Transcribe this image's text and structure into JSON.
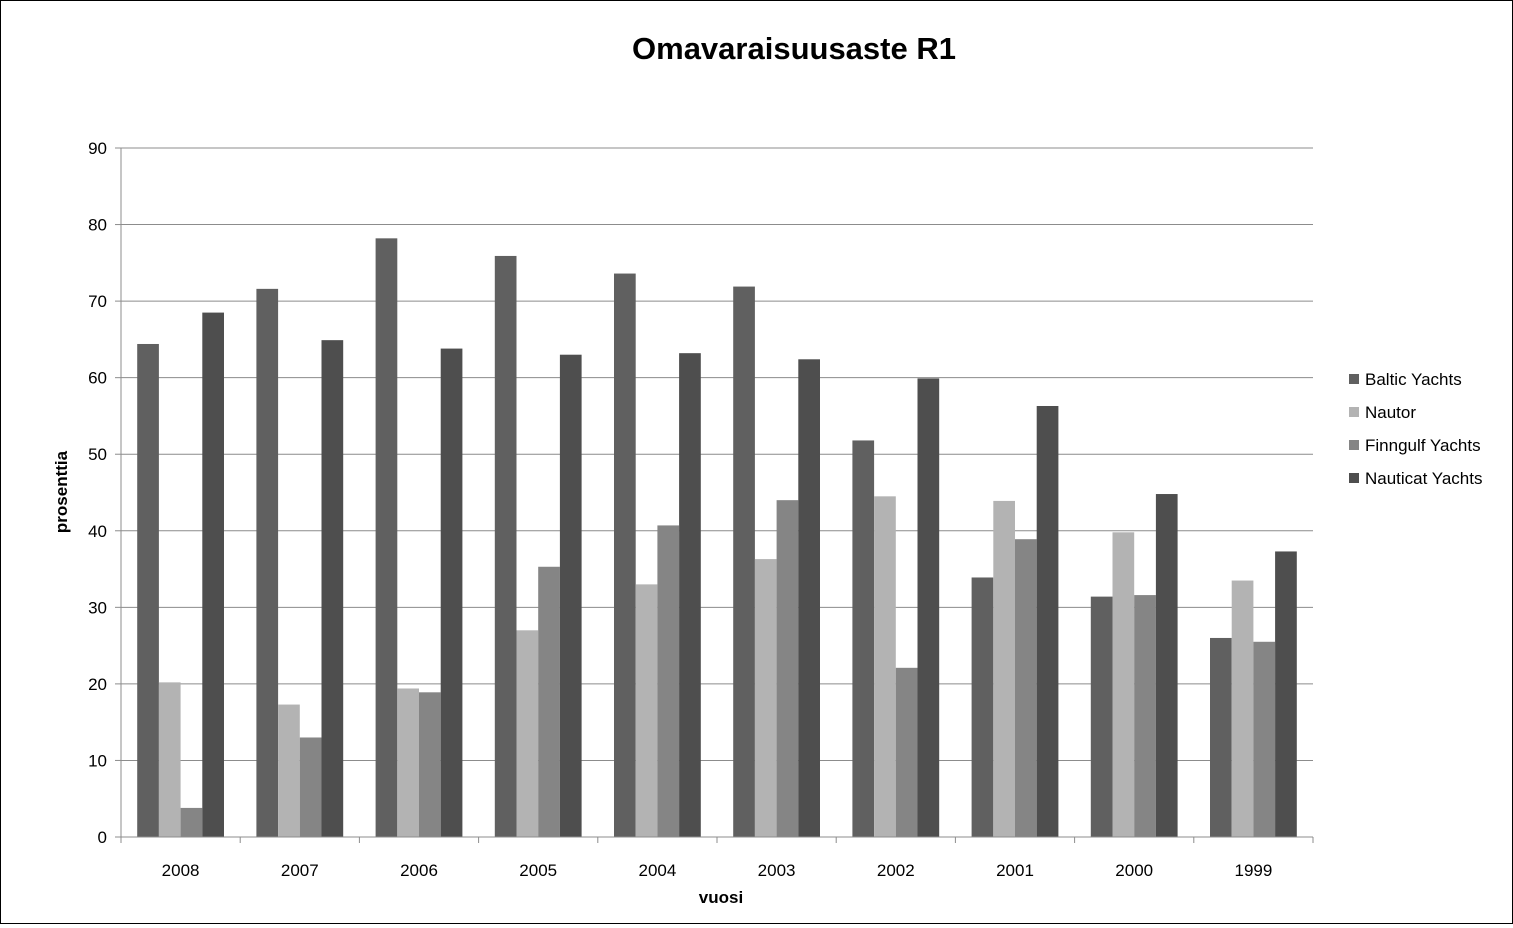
{
  "chart_data": {
    "type": "bar",
    "title": "Omavaraisuusaste R1",
    "xlabel": "vuosi",
    "ylabel": "prosenttia",
    "categories": [
      "2008",
      "2007",
      "2006",
      "2005",
      "2004",
      "2003",
      "2002",
      "2001",
      "2000",
      "1999"
    ],
    "ylim": [
      0,
      90
    ],
    "yticks": [
      0,
      10,
      20,
      30,
      40,
      50,
      60,
      70,
      80,
      90
    ],
    "grid": true,
    "legend_position": "right",
    "series": [
      {
        "name": "Baltic Yachts",
        "color": "#606060",
        "values": [
          64.4,
          71.6,
          78.2,
          75.9,
          73.6,
          71.9,
          51.8,
          33.9,
          31.4,
          26.0
        ]
      },
      {
        "name": "Nautor",
        "color": "#b3b3b3",
        "values": [
          20.2,
          17.3,
          19.4,
          27.0,
          33.0,
          36.3,
          44.5,
          43.9,
          39.8,
          33.5
        ]
      },
      {
        "name": "Finngulf Yachts",
        "color": "#858585",
        "values": [
          3.8,
          13.0,
          18.9,
          35.3,
          40.7,
          44.0,
          22.1,
          38.9,
          31.6,
          25.5
        ]
      },
      {
        "name": "Nauticat Yachts",
        "color": "#4e4e4e",
        "values": [
          68.5,
          64.9,
          63.8,
          63.0,
          63.2,
          62.4,
          59.9,
          56.3,
          44.8,
          37.3
        ]
      }
    ]
  }
}
